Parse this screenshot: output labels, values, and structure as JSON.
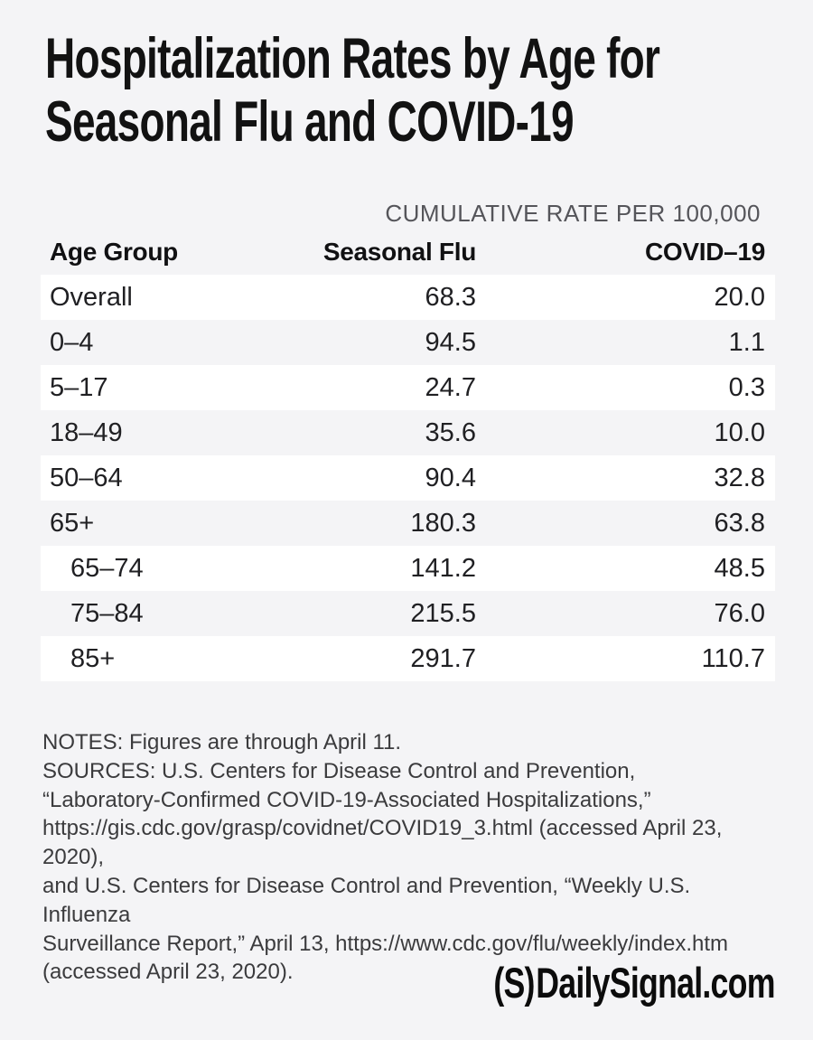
{
  "page": {
    "background": "#f4f4f6",
    "title_line1": "Hospitalization Rates by Age for",
    "title_line2": "Seasonal Flu and COVID-19"
  },
  "table": {
    "kicker": "CUMULATIVE RATE PER 100,000",
    "columns": [
      "Age Group",
      "Seasonal Flu",
      "COVID–19"
    ],
    "rows": [
      {
        "age": "Overall",
        "flu": "68.3",
        "covid": "20.0"
      },
      {
        "age": "0–4",
        "flu": "94.5",
        "covid": "1.1"
      },
      {
        "age": "5–17",
        "flu": "24.7",
        "covid": "0.3"
      },
      {
        "age": "18–49",
        "flu": "35.6",
        "covid": "10.0"
      },
      {
        "age": "50–64",
        "flu": "90.4",
        "covid": "32.8"
      },
      {
        "age": "65+",
        "flu": "180.3",
        "covid": "63.8"
      },
      {
        "age": "65–74",
        "flu": "141.2",
        "covid": "48.5"
      },
      {
        "age": "75–84",
        "flu": "215.5",
        "covid": "76.0"
      },
      {
        "age": "85+",
        "flu": "291.7",
        "covid": "110.7"
      }
    ],
    "row_band_color": "#ffffff",
    "kicker_color": "#55555a"
  },
  "notes": {
    "lines": [
      "NOTES: Figures are through April 11.",
      "SOURCES: U.S. Centers for Disease Control and Prevention,",
      "“Laboratory-Confirmed COVID-19-Associated Hospitalizations,”",
      "https://gis.cdc.gov/grasp/covidnet/COVID19_3.html (accessed April 23, 2020),",
      "and U.S. Centers for Disease Control and Prevention, “Weekly U.S. Influenza",
      "Surveillance Report,” April 13, https://www.cdc.gov/flu/weekly/index.htm",
      "(accessed April 23, 2020)."
    ]
  },
  "footer": {
    "logo_mark": "(S)",
    "logo_text": "DailySignal.com"
  },
  "chart_data": {
    "type": "table",
    "title": "Hospitalization Rates by Age for Seasonal Flu and COVID-19",
    "subtitle": "CUMULATIVE RATE PER 100,000",
    "categories": [
      "Overall",
      "0–4",
      "5–17",
      "18–49",
      "50–64",
      "65+",
      "65–74",
      "75–84",
      "85+"
    ],
    "series": [
      {
        "name": "Seasonal Flu",
        "values": [
          68.3,
          94.5,
          24.7,
          35.6,
          90.4,
          180.3,
          141.2,
          215.5,
          291.7
        ]
      },
      {
        "name": "COVID-19",
        "values": [
          20.0,
          1.1,
          0.3,
          10.0,
          32.8,
          63.8,
          48.5,
          76.0,
          110.7
        ]
      }
    ],
    "notes": "Figures are through April 11.",
    "source_credit": "DailySignal.com"
  }
}
